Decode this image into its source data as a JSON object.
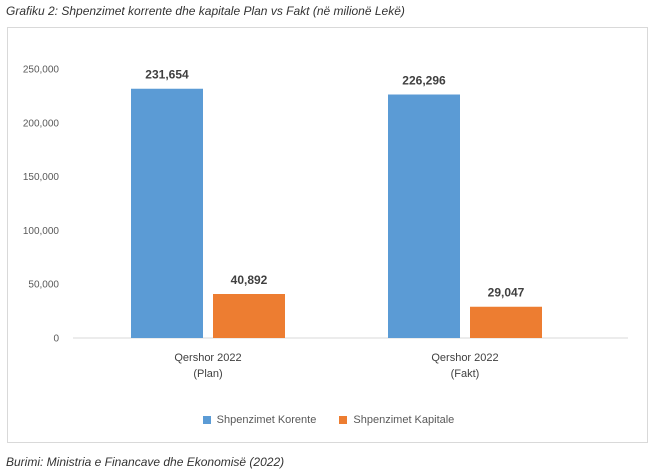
{
  "caption": "Grafiku 2: Shpenzimet korrente dhe kapitale Plan vs Fakt (në milionë Lekë)",
  "source": "Burimi: Ministria e Financave dhe Ekonomisë (2022)",
  "chart_data": {
    "type": "bar",
    "categories": [
      [
        "Qershor 2022",
        "(Plan)"
      ],
      [
        "Qershor 2022",
        "(Fakt)"
      ]
    ],
    "series": [
      {
        "name": "Shpenzimet Korente",
        "color": "#5b9bd5",
        "values": [
          231654,
          226296
        ],
        "labels": [
          "231,654",
          "226,296"
        ]
      },
      {
        "name": "Shpenzimet Kapitale",
        "color": "#ed7d31",
        "values": [
          40892,
          29047
        ],
        "labels": [
          "40,892",
          "29,047"
        ]
      }
    ],
    "ylim": [
      0,
      250000
    ],
    "yticks": [
      0,
      50000,
      100000,
      150000,
      200000,
      250000
    ],
    "ytick_labels": [
      "0",
      "50,000",
      "100,000",
      "150,000",
      "200,000",
      "250,000"
    ],
    "grid": false,
    "legend": "bottom"
  }
}
